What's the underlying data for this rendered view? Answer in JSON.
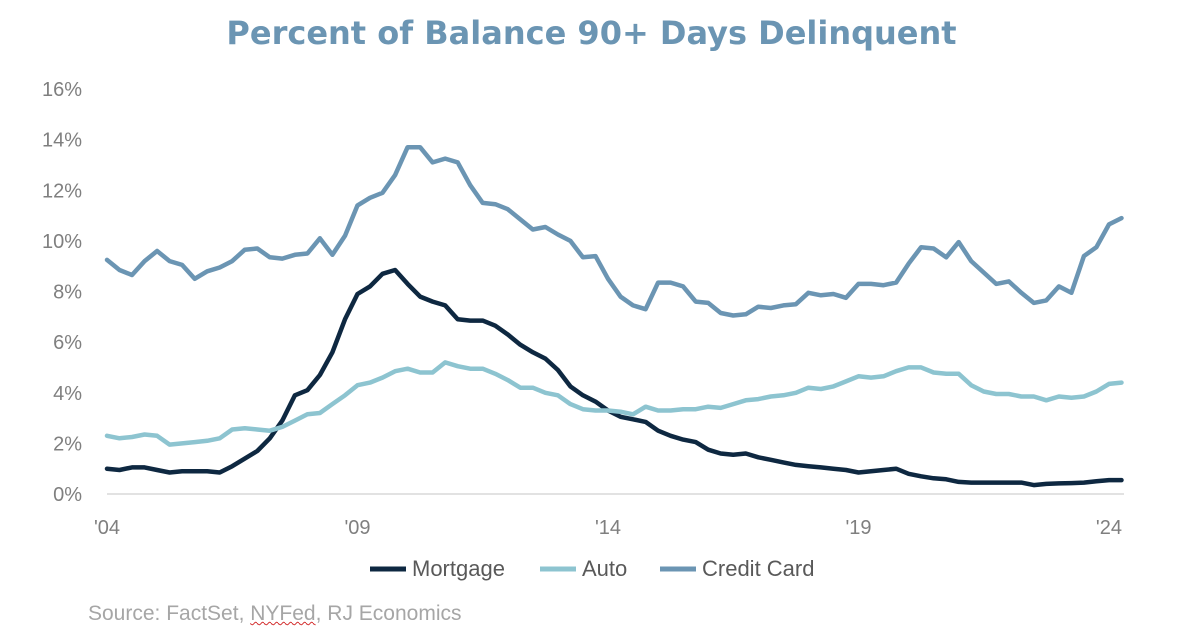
{
  "chart_data": {
    "type": "line",
    "title": "Percent of Balance 90+ Days Delinquent",
    "xlabel": "",
    "ylabel": "",
    "ylim": [
      0,
      16
    ],
    "y_ticks": [
      "0%",
      "2%",
      "4%",
      "6%",
      "8%",
      "10%",
      "12%",
      "14%",
      "16%"
    ],
    "x_tick_labels": [
      "'04",
      "'09",
      "'14",
      "'19",
      "'24"
    ],
    "x_tick_values": [
      2004,
      2009,
      2014,
      2019,
      2024
    ],
    "xlim": [
      2004,
      2024.3
    ],
    "grid": false,
    "legend": "bottom",
    "x": [
      2004.0,
      2004.25,
      2004.5,
      2004.75,
      2005.0,
      2005.25,
      2005.5,
      2005.75,
      2006.0,
      2006.25,
      2006.5,
      2006.75,
      2007.0,
      2007.25,
      2007.5,
      2007.75,
      2008.0,
      2008.25,
      2008.5,
      2008.75,
      2009.0,
      2009.25,
      2009.5,
      2009.75,
      2010.0,
      2010.25,
      2010.5,
      2010.75,
      2011.0,
      2011.25,
      2011.5,
      2011.75,
      2012.0,
      2012.25,
      2012.5,
      2012.75,
      2013.0,
      2013.25,
      2013.5,
      2013.75,
      2014.0,
      2014.25,
      2014.5,
      2014.75,
      2015.0,
      2015.25,
      2015.5,
      2015.75,
      2016.0,
      2016.25,
      2016.5,
      2016.75,
      2017.0,
      2017.25,
      2017.5,
      2017.75,
      2018.0,
      2018.25,
      2018.5,
      2018.75,
      2019.0,
      2019.25,
      2019.5,
      2019.75,
      2020.0,
      2020.25,
      2020.5,
      2020.75,
      2021.0,
      2021.25,
      2021.5,
      2021.75,
      2022.0,
      2022.25,
      2022.5,
      2022.75,
      2023.0,
      2023.25,
      2023.5,
      2023.75,
      2024.0,
      2024.25
    ],
    "series": [
      {
        "name": "Mortgage",
        "color": "#0e2841",
        "values": [
          1.0,
          0.95,
          1.05,
          1.05,
          0.95,
          0.85,
          0.9,
          0.9,
          0.9,
          0.85,
          1.1,
          1.4,
          1.7,
          2.2,
          2.9,
          3.9,
          4.1,
          4.7,
          5.6,
          6.9,
          7.9,
          8.2,
          8.7,
          8.85,
          8.3,
          7.8,
          7.6,
          7.45,
          6.9,
          6.85,
          6.85,
          6.65,
          6.3,
          5.9,
          5.6,
          5.35,
          4.9,
          4.25,
          3.9,
          3.65,
          3.3,
          3.05,
          2.95,
          2.85,
          2.5,
          2.3,
          2.15,
          2.05,
          1.75,
          1.6,
          1.55,
          1.6,
          1.45,
          1.35,
          1.25,
          1.15,
          1.1,
          1.05,
          1.0,
          0.95,
          0.85,
          0.9,
          0.95,
          1.0,
          0.8,
          0.7,
          0.62,
          0.58,
          0.48,
          0.45,
          0.45,
          0.45,
          0.45,
          0.45,
          0.35,
          0.4,
          0.42,
          0.43,
          0.45,
          0.5,
          0.55,
          0.55
        ]
      },
      {
        "name": "Auto",
        "color": "#8dc4d0",
        "values": [
          2.3,
          2.2,
          2.25,
          2.35,
          2.3,
          1.95,
          2.0,
          2.05,
          2.1,
          2.2,
          2.55,
          2.6,
          2.55,
          2.5,
          2.65,
          2.9,
          3.15,
          3.2,
          3.55,
          3.9,
          4.3,
          4.4,
          4.6,
          4.85,
          4.95,
          4.8,
          4.8,
          5.2,
          5.05,
          4.95,
          4.95,
          4.75,
          4.5,
          4.2,
          4.2,
          4.0,
          3.9,
          3.55,
          3.35,
          3.3,
          3.3,
          3.25,
          3.15,
          3.45,
          3.3,
          3.3,
          3.35,
          3.35,
          3.45,
          3.4,
          3.55,
          3.7,
          3.75,
          3.85,
          3.9,
          4.0,
          4.2,
          4.15,
          4.25,
          4.45,
          4.65,
          4.6,
          4.65,
          4.85,
          5.0,
          5.0,
          4.8,
          4.75,
          4.75,
          4.3,
          4.05,
          3.95,
          3.95,
          3.85,
          3.85,
          3.7,
          3.85,
          3.8,
          3.85,
          4.05,
          4.35,
          4.4
        ]
      },
      {
        "name": "Credit Card",
        "color": "#6b95b3",
        "values": [
          9.25,
          8.85,
          8.65,
          9.2,
          9.6,
          9.2,
          9.05,
          8.5,
          8.8,
          8.95,
          9.2,
          9.65,
          9.7,
          9.35,
          9.3,
          9.45,
          9.5,
          10.1,
          9.45,
          10.2,
          11.4,
          11.7,
          11.9,
          12.6,
          13.7,
          13.7,
          13.1,
          13.25,
          13.1,
          12.2,
          11.5,
          11.45,
          11.25,
          10.85,
          10.45,
          10.55,
          10.25,
          10.0,
          9.35,
          9.4,
          8.5,
          7.8,
          7.45,
          7.3,
          8.35,
          8.35,
          8.2,
          7.6,
          7.55,
          7.15,
          7.05,
          7.1,
          7.4,
          7.35,
          7.45,
          7.5,
          7.95,
          7.85,
          7.9,
          7.75,
          8.3,
          8.3,
          8.25,
          8.35,
          9.1,
          9.75,
          9.7,
          9.35,
          9.95,
          9.2,
          8.75,
          8.3,
          8.4,
          7.95,
          7.55,
          7.65,
          8.2,
          7.95,
          9.4,
          9.75,
          10.65,
          10.9
        ]
      }
    ]
  },
  "footer": {
    "source_prefix": "Source: FactSet, ",
    "source_flagged": "NYFed",
    "source_suffix": ", RJ Economics"
  }
}
